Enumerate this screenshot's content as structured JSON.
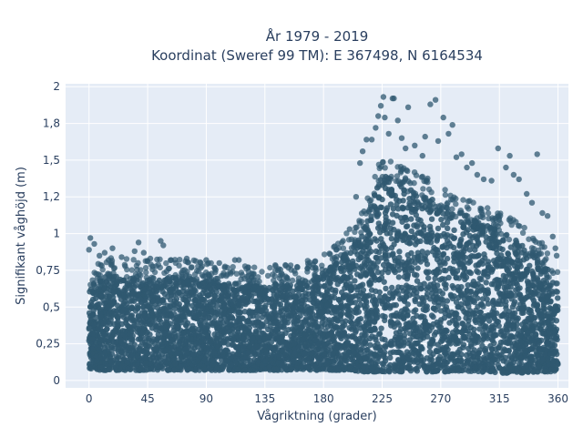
{
  "chart_data": {
    "type": "scatter",
    "title_line1": "År 1979 - 2019",
    "title_line2": "Koordinat (Sweref 99 TM): E 367498, N 6164534",
    "xlabel": "Vågriktning (grader)",
    "ylabel": "Signifikant våghöjd (m)",
    "xlim": [
      -18,
      368
    ],
    "ylim": [
      -0.05,
      2.02
    ],
    "xticks": [
      0,
      45,
      90,
      135,
      180,
      225,
      270,
      315,
      360
    ],
    "xtick_labels": [
      "0",
      "45",
      "90",
      "135",
      "180",
      "225",
      "270",
      "315",
      "360"
    ],
    "yticks": [
      0,
      0.25,
      0.5,
      0.75,
      1,
      1.25,
      1.5,
      1.75,
      2
    ],
    "ytick_labels": [
      "0",
      "0,25",
      "0,5",
      "0,75",
      "1",
      "1,2",
      "1,5",
      "1,8",
      "2"
    ],
    "marker_color": "#2f5870",
    "plot_bg": "#e5ecf6",
    "grid": true,
    "envelope": {
      "x": [
        0,
        10,
        20,
        30,
        45,
        60,
        75,
        90,
        105,
        120,
        135,
        150,
        165,
        180,
        190,
        200,
        210,
        220,
        225,
        235,
        250,
        270,
        285,
        300,
        315,
        330,
        345,
        355,
        360
      ],
      "y_low": [
        0.08,
        0.07,
        0.07,
        0.07,
        0.07,
        0.07,
        0.07,
        0.07,
        0.07,
        0.07,
        0.07,
        0.07,
        0.07,
        0.07,
        0.07,
        0.07,
        0.06,
        0.06,
        0.06,
        0.06,
        0.06,
        0.06,
        0.06,
        0.06,
        0.05,
        0.05,
        0.06,
        0.06,
        0.07
      ],
      "y_high": [
        0.62,
        0.7,
        0.72,
        0.7,
        0.7,
        0.7,
        0.7,
        0.68,
        0.66,
        0.65,
        0.66,
        0.66,
        0.68,
        0.74,
        0.8,
        0.9,
        1.02,
        1.3,
        1.4,
        1.38,
        1.3,
        1.2,
        1.15,
        1.08,
        1.02,
        0.95,
        0.85,
        0.72,
        0.6
      ]
    },
    "outliers": [
      {
        "x": 1,
        "y": 0.97
      },
      {
        "x": 4,
        "y": 0.93
      },
      {
        "x": 0,
        "y": 0.89
      },
      {
        "x": 8,
        "y": 0.85
      },
      {
        "x": 12,
        "y": 0.87
      },
      {
        "x": 15,
        "y": 0.82
      },
      {
        "x": 18,
        "y": 0.9
      },
      {
        "x": 25,
        "y": 0.84
      },
      {
        "x": 35,
        "y": 0.88
      },
      {
        "x": 42,
        "y": 0.87
      },
      {
        "x": 38,
        "y": 0.94
      },
      {
        "x": 47,
        "y": 0.83
      },
      {
        "x": 55,
        "y": 0.95
      },
      {
        "x": 57,
        "y": 0.92
      },
      {
        "x": 63,
        "y": 0.82
      },
      {
        "x": 75,
        "y": 0.83
      },
      {
        "x": 90,
        "y": 0.82
      },
      {
        "x": 100,
        "y": 0.8
      },
      {
        "x": 115,
        "y": 0.82
      },
      {
        "x": 112,
        "y": 0.82
      },
      {
        "x": 145,
        "y": 0.75
      },
      {
        "x": 160,
        "y": 0.77
      },
      {
        "x": 172,
        "y": 0.79
      },
      {
        "x": 185,
        "y": 0.86
      },
      {
        "x": 195,
        "y": 0.95
      },
      {
        "x": 200,
        "y": 1.03
      },
      {
        "x": 205,
        "y": 1.25
      },
      {
        "x": 208,
        "y": 1.48
      },
      {
        "x": 210,
        "y": 1.56
      },
      {
        "x": 213,
        "y": 1.64
      },
      {
        "x": 217,
        "y": 1.64
      },
      {
        "x": 220,
        "y": 1.72
      },
      {
        "x": 222,
        "y": 1.8
      },
      {
        "x": 224,
        "y": 1.87
      },
      {
        "x": 226,
        "y": 1.93
      },
      {
        "x": 227,
        "y": 1.79
      },
      {
        "x": 230,
        "y": 1.68
      },
      {
        "x": 233,
        "y": 1.92
      },
      {
        "x": 234,
        "y": 1.92
      },
      {
        "x": 237,
        "y": 1.77
      },
      {
        "x": 240,
        "y": 1.65
      },
      {
        "x": 243,
        "y": 1.58
      },
      {
        "x": 245,
        "y": 1.86
      },
      {
        "x": 250,
        "y": 1.6
      },
      {
        "x": 256,
        "y": 1.53
      },
      {
        "x": 258,
        "y": 1.66
      },
      {
        "x": 262,
        "y": 1.88
      },
      {
        "x": 266,
        "y": 1.91
      },
      {
        "x": 268,
        "y": 1.63
      },
      {
        "x": 272,
        "y": 1.79
      },
      {
        "x": 276,
        "y": 1.68
      },
      {
        "x": 279,
        "y": 1.74
      },
      {
        "x": 282,
        "y": 1.52
      },
      {
        "x": 286,
        "y": 1.54
      },
      {
        "x": 290,
        "y": 1.45
      },
      {
        "x": 294,
        "y": 1.48
      },
      {
        "x": 298,
        "y": 1.4
      },
      {
        "x": 303,
        "y": 1.37
      },
      {
        "x": 309,
        "y": 1.36
      },
      {
        "x": 314,
        "y": 1.58
      },
      {
        "x": 320,
        "y": 1.45
      },
      {
        "x": 323,
        "y": 1.53
      },
      {
        "x": 326,
        "y": 1.4
      },
      {
        "x": 330,
        "y": 1.37
      },
      {
        "x": 336,
        "y": 1.27
      },
      {
        "x": 340,
        "y": 1.21
      },
      {
        "x": 344,
        "y": 1.54
      },
      {
        "x": 348,
        "y": 1.14
      },
      {
        "x": 352,
        "y": 1.12
      },
      {
        "x": 356,
        "y": 0.98
      },
      {
        "x": 358,
        "y": 0.9
      },
      {
        "x": 359,
        "y": 0.85
      }
    ]
  }
}
